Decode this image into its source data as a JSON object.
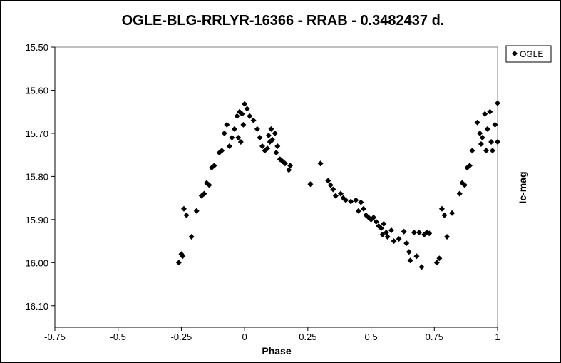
{
  "chart_data": {
    "type": "scatter",
    "title": "OGLE-BLG-RRLYR-16366 - RRAB - 0.3482437 d.",
    "xlabel": "Phase",
    "ylabel": "Ic-mag",
    "xlim": [
      -0.75,
      1
    ],
    "ylim": [
      15.5,
      16.15
    ],
    "y_inverted": true,
    "x_ticks": [
      "-0.75",
      "-0.5",
      "-0.25",
      "0",
      "0.25",
      "0.5",
      "0.75",
      "1"
    ],
    "x_tick_values": [
      -0.75,
      -0.5,
      -0.25,
      0,
      0.25,
      0.5,
      0.75,
      1
    ],
    "y_ticks": [
      "15.50",
      "15.60",
      "15.70",
      "15.80",
      "15.90",
      "16.00",
      "16.10"
    ],
    "y_tick_values": [
      15.5,
      15.6,
      15.7,
      15.8,
      15.9,
      16.0,
      16.1
    ],
    "legend_position": "top-right",
    "series": [
      {
        "name": "OGLE",
        "marker": "diamond",
        "color": "#000000",
        "points": [
          [
            0.0,
            15.632
          ],
          [
            0.01,
            15.643
          ],
          [
            0.02,
            15.66
          ],
          [
            0.035,
            15.67
          ],
          [
            0.05,
            15.69
          ],
          [
            0.06,
            15.71
          ],
          [
            0.07,
            15.73
          ],
          [
            0.08,
            15.74
          ],
          [
            0.09,
            15.735
          ],
          [
            0.095,
            15.705
          ],
          [
            0.1,
            15.72
          ],
          [
            0.105,
            15.69
          ],
          [
            0.11,
            15.715
          ],
          [
            0.12,
            15.7
          ],
          [
            0.125,
            15.745
          ],
          [
            0.13,
            15.73
          ],
          [
            0.14,
            15.76
          ],
          [
            0.15,
            15.765
          ],
          [
            0.16,
            15.77
          ],
          [
            0.175,
            15.785
          ],
          [
            0.18,
            15.775
          ],
          [
            0.26,
            15.818
          ],
          [
            0.3,
            15.77
          ],
          [
            0.33,
            15.81
          ],
          [
            0.34,
            15.82
          ],
          [
            0.35,
            15.83
          ],
          [
            0.36,
            15.845
          ],
          [
            0.38,
            15.84
          ],
          [
            0.39,
            15.85
          ],
          [
            0.4,
            15.855
          ],
          [
            0.42,
            15.858
          ],
          [
            0.44,
            15.855
          ],
          [
            0.45,
            15.88
          ],
          [
            0.46,
            15.86
          ],
          [
            0.47,
            15.875
          ],
          [
            0.48,
            15.89
          ],
          [
            0.49,
            15.895
          ],
          [
            0.5,
            15.9
          ],
          [
            0.51,
            15.895
          ],
          [
            0.52,
            15.905
          ],
          [
            0.53,
            15.915
          ],
          [
            0.54,
            15.92
          ],
          [
            0.545,
            15.935
          ],
          [
            0.55,
            15.91
          ],
          [
            0.56,
            15.93
          ],
          [
            0.565,
            15.94
          ],
          [
            0.58,
            15.925
          ],
          [
            0.59,
            15.95
          ],
          [
            0.61,
            15.945
          ],
          [
            0.63,
            15.928
          ],
          [
            0.64,
            15.955
          ],
          [
            0.65,
            15.975
          ],
          [
            0.655,
            15.995
          ],
          [
            0.67,
            15.93
          ],
          [
            0.68,
            15.985
          ],
          [
            0.69,
            15.93
          ],
          [
            0.7,
            16.01
          ],
          [
            0.71,
            15.935
          ],
          [
            0.72,
            15.93
          ],
          [
            0.73,
            15.932
          ],
          [
            0.76,
            16.0
          ],
          [
            0.77,
            15.99
          ],
          [
            0.78,
            15.875
          ],
          [
            0.79,
            15.89
          ],
          [
            0.8,
            15.94
          ],
          [
            0.82,
            15.885
          ],
          [
            0.85,
            15.84
          ],
          [
            0.86,
            15.815
          ],
          [
            0.87,
            15.82
          ],
          [
            0.88,
            15.78
          ],
          [
            0.89,
            15.775
          ],
          [
            0.9,
            15.74
          ],
          [
            0.92,
            15.675
          ],
          [
            0.93,
            15.7
          ],
          [
            0.935,
            15.725
          ],
          [
            0.94,
            15.71
          ],
          [
            0.95,
            15.655
          ],
          [
            0.955,
            15.74
          ],
          [
            0.96,
            15.69
          ],
          [
            0.97,
            15.65
          ],
          [
            0.975,
            15.72
          ],
          [
            0.98,
            15.74
          ],
          [
            0.99,
            15.68
          ],
          [
            1.0,
            15.63
          ],
          [
            1.0,
            15.72
          ],
          [
            -0.05,
            15.71
          ],
          [
            -0.04,
            15.69
          ],
          [
            -0.03,
            15.66
          ],
          [
            -0.025,
            15.71
          ],
          [
            -0.02,
            15.65
          ],
          [
            -0.015,
            15.72
          ],
          [
            -0.01,
            15.655
          ],
          [
            -0.005,
            15.68
          ],
          [
            -0.06,
            15.73
          ],
          [
            -0.07,
            15.68
          ],
          [
            -0.08,
            15.7
          ],
          [
            -0.09,
            15.74
          ],
          [
            -0.1,
            15.745
          ],
          [
            -0.12,
            15.775
          ],
          [
            -0.13,
            15.78
          ],
          [
            -0.14,
            15.82
          ],
          [
            -0.15,
            15.815
          ],
          [
            -0.16,
            15.84
          ],
          [
            -0.17,
            15.845
          ],
          [
            -0.19,
            15.88
          ],
          [
            -0.21,
            15.94
          ],
          [
            -0.23,
            15.89
          ],
          [
            -0.24,
            15.875
          ],
          [
            -0.245,
            15.985
          ],
          [
            -0.25,
            15.98
          ],
          [
            -0.26,
            16.0
          ]
        ]
      }
    ]
  },
  "legend": {
    "label": "OGLE"
  }
}
